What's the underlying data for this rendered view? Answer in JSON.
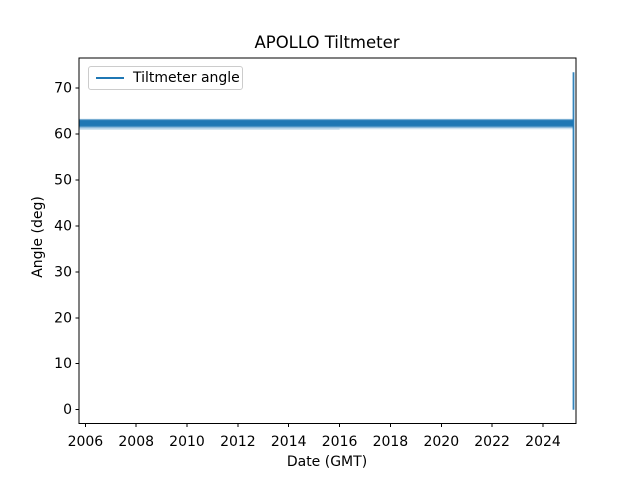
{
  "chart_data": {
    "type": "line",
    "title": "APOLLO Tiltmeter",
    "xlabel": "Date (GMT)",
    "ylabel": "Angle (deg)",
    "xlim": [
      2005.75,
      2025.3
    ],
    "ylim": [
      -3.0,
      76.5
    ],
    "xticks": [
      2006,
      2008,
      2010,
      2012,
      2014,
      2016,
      2018,
      2020,
      2022,
      2024
    ],
    "yticks": [
      0,
      10,
      20,
      30,
      40,
      50,
      60,
      70
    ],
    "grid": false,
    "axis_color": "#000000",
    "legend": {
      "position": "upper-left",
      "entries": [
        {
          "label": "Tiltmeter angle",
          "color": "#1f77b4"
        }
      ]
    },
    "series": [
      {
        "name": "Tiltmeter angle",
        "color": "#1f77b4",
        "x_start": 2005.75,
        "x_end": 2025.2,
        "y_typical": 62.3,
        "y_band_min": 61.0,
        "y_band_max": 63.3,
        "end_spike": {
          "x": 2025.2,
          "y_low": 0,
          "y_high": 73.4
        }
      }
    ],
    "band_layers": [
      {
        "y0": 61.0,
        "y1": 63.3,
        "opacity": 0.22
      },
      {
        "y0": 61.3,
        "y1": 63.2,
        "opacity": 0.45
      },
      {
        "y0": 61.55,
        "y1": 63.05,
        "opacity": 0.75
      },
      {
        "y0": 61.75,
        "y1": 62.9,
        "opacity": 1.0
      },
      {
        "y0": 60.95,
        "y1": 61.15,
        "opacity": 0.3,
        "x1": 2016.0
      }
    ]
  }
}
